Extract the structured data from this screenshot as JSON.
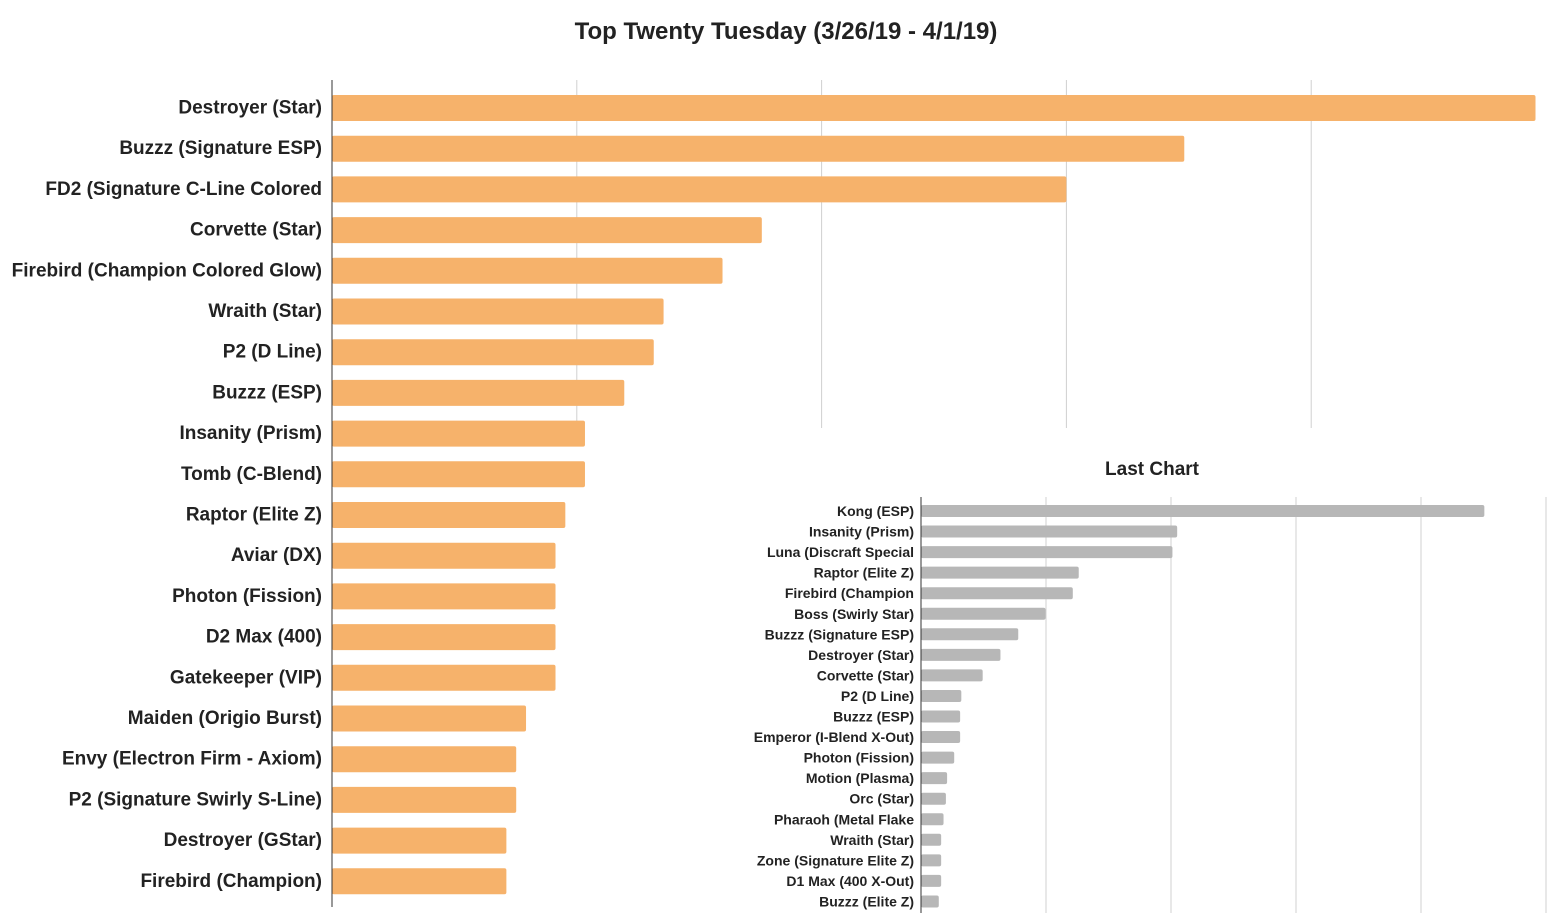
{
  "chart_data": [
    {
      "type": "bar",
      "orientation": "horizontal",
      "title": "Top Twenty Tuesday (3/26/19 - 4/1/19)",
      "xlabel": "",
      "ylabel": "",
      "grid": true,
      "xlim": [
        0,
        49
      ],
      "bar_color": "#F6B26B",
      "categories": [
        "Destroyer (Star)",
        "Buzzz (Signature ESP)",
        "FD2 (Signature C-Line Colored",
        "Corvette (Star)",
        "Firebird (Champion Colored Glow)",
        "Wraith (Star)",
        "P2 (D Line)",
        "Buzzz (ESP)",
        "Insanity (Prism)",
        "Tomb (C-Blend)",
        "Raptor (Elite Z)",
        "Aviar (DX)",
        "Photon (Fission)",
        "D2 Max (400)",
        "Gatekeeper (VIP)",
        "Maiden (Origio Burst)",
        "Envy (Electron Firm - Axiom)",
        "P2 (Signature Swirly S-Line)",
        "Destroyer (GStar)",
        "Firebird (Champion)"
      ],
      "values": [
        49,
        34.7,
        29.9,
        17.5,
        15.9,
        13.5,
        13.1,
        11.9,
        10.3,
        10.3,
        9.5,
        9.1,
        9.1,
        9.1,
        9.1,
        7.9,
        7.5,
        7.5,
        7.1,
        7.1
      ]
    },
    {
      "type": "bar",
      "orientation": "horizontal",
      "title": "Last Chart",
      "xlabel": "",
      "ylabel": "",
      "grid": true,
      "xlim": [
        0,
        50
      ],
      "bar_color": "#B7B7B7",
      "categories": [
        "Kong (ESP)",
        "Insanity (Prism)",
        "Luna (Discraft Special",
        "Raptor (Elite Z)",
        "Firebird (Champion",
        "Boss (Swirly Star)",
        "Buzzz (Signature ESP)",
        "Destroyer (Star)",
        "Corvette (Star)",
        "P2 (D Line)",
        "Buzzz (ESP)",
        "Emperor (I-Blend X-Out)",
        "Photon (Fission)",
        "Motion (Plasma)",
        "Orc (Star)",
        "Pharaoh (Metal Flake",
        "Wraith (Star)",
        "Zone (Signature Elite Z)",
        "D1 Max (400 X-Out)",
        "Buzzz (Elite Z)"
      ],
      "values": [
        47.5,
        21.6,
        21.2,
        13.3,
        12.8,
        10.5,
        8.2,
        6.7,
        5.2,
        3.4,
        3.3,
        3.3,
        2.8,
        2.2,
        2.1,
        1.9,
        1.7,
        1.7,
        1.7,
        1.5
      ]
    }
  ]
}
